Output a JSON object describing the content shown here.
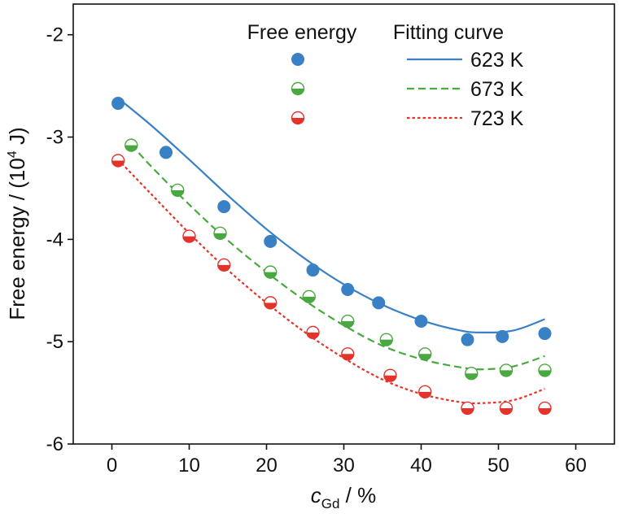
{
  "chart_data": {
    "type": "scatter",
    "ylabel": {
      "main": "Free energy / (10",
      "sup": "4",
      "tail": " J)"
    },
    "xlabel": {
      "italic": "c",
      "sub": "Gd",
      "tail": " / %"
    },
    "xlim": [
      -5,
      65
    ],
    "ylim": [
      -6,
      -1.7
    ],
    "xticks": [
      0,
      10,
      20,
      30,
      40,
      50,
      60
    ],
    "yticks": [
      -2,
      -3,
      -4,
      -5,
      -6
    ],
    "grid": false,
    "legend": {
      "placement": "top-right",
      "points_header": "Free energy",
      "curves_header": "Fitting curve"
    },
    "series": [
      {
        "name": "623 K",
        "color": "#3a80c4",
        "marker": "filled-circle",
        "line_style": "solid",
        "points": [
          {
            "x": 0.8,
            "y": -2.67
          },
          {
            "x": 7,
            "y": -3.15
          },
          {
            "x": 14.5,
            "y": -3.68
          },
          {
            "x": 20.5,
            "y": -4.02
          },
          {
            "x": 26,
            "y": -4.3
          },
          {
            "x": 30.5,
            "y": -4.49
          },
          {
            "x": 34.5,
            "y": -4.62
          },
          {
            "x": 40,
            "y": -4.8
          },
          {
            "x": 46,
            "y": -4.98
          },
          {
            "x": 50.5,
            "y": -4.95
          },
          {
            "x": 56,
            "y": -4.92
          }
        ],
        "fit": [
          {
            "x": 0.8,
            "y": -2.62
          },
          {
            "x": 5,
            "y": -2.88
          },
          {
            "x": 10,
            "y": -3.22
          },
          {
            "x": 15,
            "y": -3.57
          },
          {
            "x": 20,
            "y": -3.9
          },
          {
            "x": 25,
            "y": -4.19
          },
          {
            "x": 30,
            "y": -4.44
          },
          {
            "x": 35,
            "y": -4.64
          },
          {
            "x": 40,
            "y": -4.79
          },
          {
            "x": 45,
            "y": -4.89
          },
          {
            "x": 48,
            "y": -4.91
          },
          {
            "x": 52,
            "y": -4.89
          },
          {
            "x": 56,
            "y": -4.78
          }
        ]
      },
      {
        "name": "673 K",
        "color": "#49a83f",
        "marker": "half-filled-bottom",
        "line_style": "dashed",
        "points": [
          {
            "x": 2.5,
            "y": -3.08
          },
          {
            "x": 8.5,
            "y": -3.52
          },
          {
            "x": 14,
            "y": -3.94
          },
          {
            "x": 20.5,
            "y": -4.32
          },
          {
            "x": 25.5,
            "y": -4.56
          },
          {
            "x": 30.5,
            "y": -4.8
          },
          {
            "x": 35.5,
            "y": -4.98
          },
          {
            "x": 40.5,
            "y": -5.12
          },
          {
            "x": 46.5,
            "y": -5.31
          },
          {
            "x": 51,
            "y": -5.28
          },
          {
            "x": 56,
            "y": -5.28
          }
        ],
        "fit": [
          {
            "x": 2.5,
            "y": -3.07
          },
          {
            "x": 5,
            "y": -3.28
          },
          {
            "x": 10,
            "y": -3.66
          },
          {
            "x": 15,
            "y": -4.01
          },
          {
            "x": 20,
            "y": -4.32
          },
          {
            "x": 25,
            "y": -4.6
          },
          {
            "x": 30,
            "y": -4.84
          },
          {
            "x": 35,
            "y": -5.04
          },
          {
            "x": 40,
            "y": -5.17
          },
          {
            "x": 45,
            "y": -5.25
          },
          {
            "x": 48,
            "y": -5.27
          },
          {
            "x": 52,
            "y": -5.24
          },
          {
            "x": 56,
            "y": -5.14
          }
        ]
      },
      {
        "name": "723 K",
        "color": "#e3332b",
        "marker": "half-filled-bottom",
        "line_style": "dotted",
        "points": [
          {
            "x": 0.8,
            "y": -3.23
          },
          {
            "x": 10,
            "y": -3.97
          },
          {
            "x": 14.5,
            "y": -4.25
          },
          {
            "x": 20.5,
            "y": -4.62
          },
          {
            "x": 26,
            "y": -4.91
          },
          {
            "x": 30.5,
            "y": -5.12
          },
          {
            "x": 36,
            "y": -5.33
          },
          {
            "x": 40.5,
            "y": -5.49
          },
          {
            "x": 46,
            "y": -5.65
          },
          {
            "x": 51,
            "y": -5.65
          },
          {
            "x": 56,
            "y": -5.65
          }
        ],
        "fit": [
          {
            "x": 0.8,
            "y": -3.22
          },
          {
            "x": 5,
            "y": -3.55
          },
          {
            "x": 10,
            "y": -3.94
          },
          {
            "x": 15,
            "y": -4.3
          },
          {
            "x": 20,
            "y": -4.62
          },
          {
            "x": 25,
            "y": -4.91
          },
          {
            "x": 30,
            "y": -5.16
          },
          {
            "x": 35,
            "y": -5.37
          },
          {
            "x": 40,
            "y": -5.51
          },
          {
            "x": 45,
            "y": -5.59
          },
          {
            "x": 48,
            "y": -5.6
          },
          {
            "x": 52,
            "y": -5.57
          },
          {
            "x": 56,
            "y": -5.46
          }
        ]
      }
    ]
  }
}
